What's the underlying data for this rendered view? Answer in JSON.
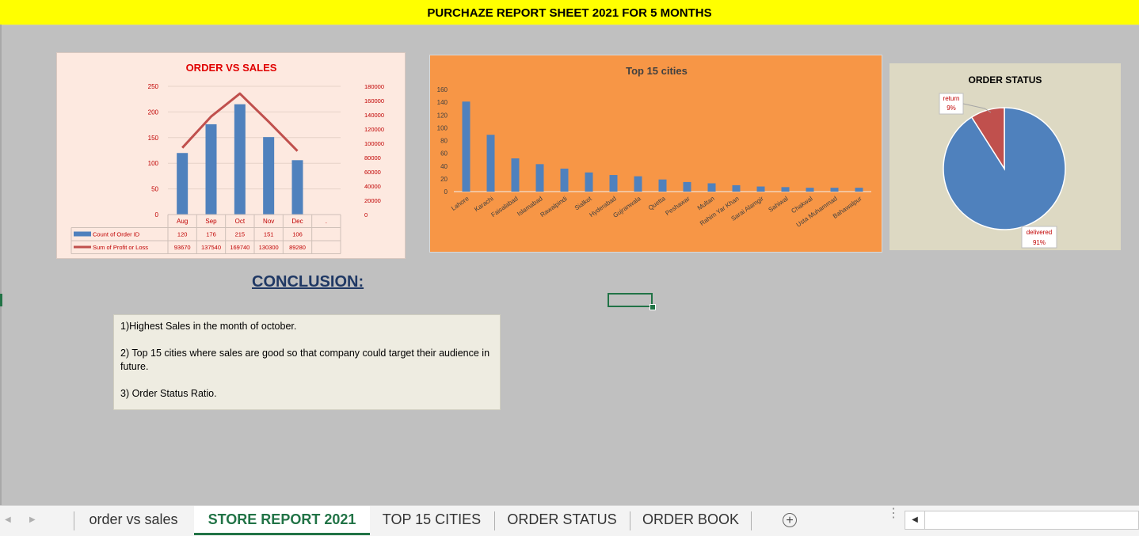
{
  "banner": {
    "title": "PURCHAZE REPORT SHEET 2021 FOR 5 MONTHS",
    "bg": "#ffff00"
  },
  "conclusion": {
    "title": "CONCLUSION:",
    "point1": "1)Highest Sales in the month of october.",
    "point2": "2) Top 15 cities where sales are good so that company could target their audience in future.",
    "point3": "3) Order Status Ratio."
  },
  "sheet_tabs": [
    {
      "label": "order vs sales",
      "active": false
    },
    {
      "label": "STORE REPORT 2021",
      "active": true
    },
    {
      "label": "TOP 15 CITIES",
      "active": false
    },
    {
      "label": "ORDER STATUS",
      "active": false
    },
    {
      "label": "ORDER BOOK",
      "active": false
    }
  ],
  "icons": {
    "add_sheet": "plus-circle-icon",
    "prev": "chevron-left-icon",
    "next": "chevron-right-icon",
    "options": "vertical-dots-icon"
  },
  "chart_data": [
    {
      "type": "bar",
      "title": "ORDER VS SALES",
      "categories": [
        "Aug",
        "Sep",
        "Oct",
        "Nov",
        "Dec"
      ],
      "series": [
        {
          "name": "Count of Order ID",
          "chart_type": "bar",
          "axis": "left",
          "color": "#4f81bd",
          "values": [
            120,
            176,
            215,
            151,
            106
          ]
        },
        {
          "name": "Sum of Profit or Loss",
          "chart_type": "line",
          "axis": "right",
          "color": "#c0504d",
          "values": [
            93670,
            137540,
            169740,
            130300,
            89280
          ]
        }
      ],
      "y_left_ticks": [
        "0",
        "50",
        "100",
        "150",
        "200",
        "250"
      ],
      "y_right_ticks": [
        "0",
        "20000",
        "40000",
        "60000",
        "80000",
        "100000",
        "120000",
        "140000",
        "160000",
        "180000"
      ],
      "ylim_left": [
        0,
        250
      ],
      "ylim_right": [
        0,
        180000
      ],
      "extra_category": ".",
      "legend": "data table",
      "grid": true
    },
    {
      "type": "bar",
      "title": "Top 15 cities",
      "categories": [
        "Lahore",
        "Karachi",
        "Faisalabad",
        "Islamabad",
        "Rawalpindi",
        "Sialkot",
        "Hyderabad",
        "Gujranwala",
        "Quetta",
        "Peshawar",
        "Multan",
        "Rahim Yar Khan",
        "Sarai Alamgir",
        "Sahiwal",
        "Chakwal",
        "Usta Muhammad",
        "Bahawalpur"
      ],
      "values": [
        141,
        89,
        52,
        43,
        36,
        30,
        26,
        24,
        19,
        15,
        13,
        10,
        8,
        7,
        6,
        6,
        6
      ],
      "y_ticks": [
        "0",
        "20",
        "40",
        "60",
        "80",
        "100",
        "120",
        "140",
        "160"
      ],
      "ylim": [
        0,
        160
      ],
      "color": "#4f81bd",
      "bg": "#f79646"
    },
    {
      "type": "pie",
      "title": "ORDER STATUS",
      "labels": [
        "delivered",
        "return"
      ],
      "values": [
        91,
        9
      ],
      "percent_labels": [
        "91%",
        "9%"
      ],
      "colors": [
        "#4f81bd",
        "#c0504d"
      ]
    }
  ]
}
